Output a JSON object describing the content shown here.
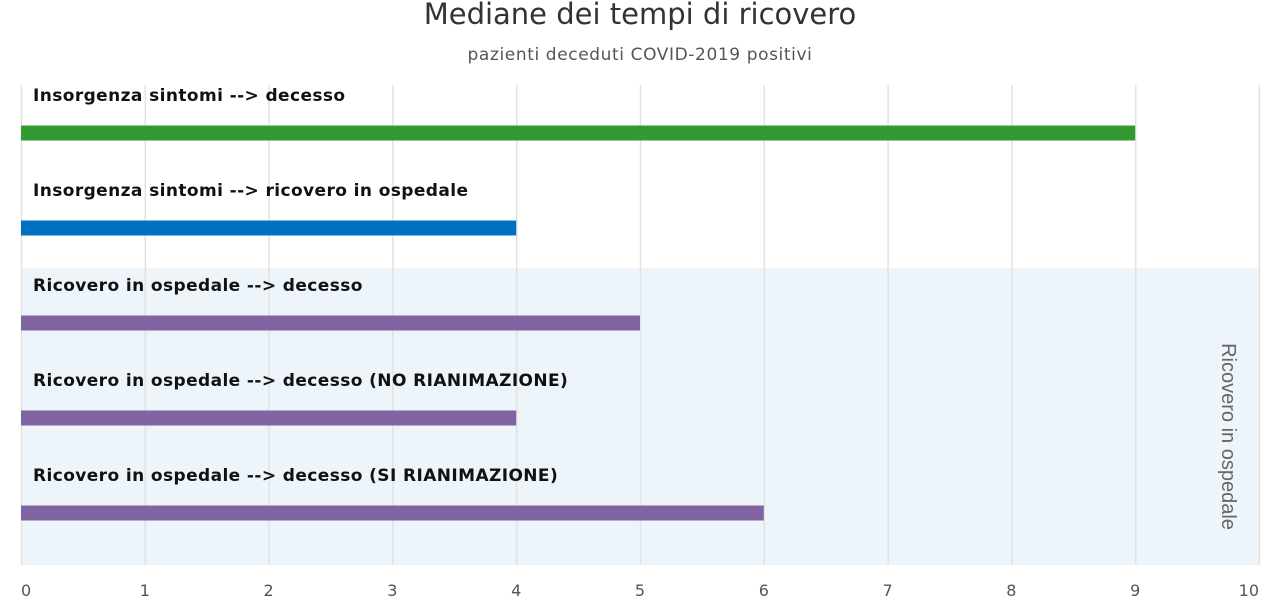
{
  "chart_data": {
    "type": "bar",
    "orientation": "horizontal",
    "title": "Mediane dei tempi di ricovero",
    "subtitle": "pazienti deceduti COVID-2019 positivi",
    "xlim": [
      0,
      10
    ],
    "x_ticks": [
      "0",
      "1",
      "2",
      "3",
      "4",
      "5",
      "6",
      "7",
      "8",
      "9",
      "10"
    ],
    "grid": true,
    "categories": [
      "Insorgenza sintomi --> decesso",
      "Insorgenza sintomi --> ricovero in ospedale",
      "Ricovero in ospedale --> decesso",
      "Ricovero in ospedale --> decesso (NO RIANIMAZIONE)",
      "Ricovero in ospedale --> decesso (SI RIANIMAZIONE)"
    ],
    "values": [
      9,
      4,
      5,
      4,
      6
    ],
    "colors": [
      "#339933",
      "#0070c0",
      "#8064a2",
      "#8064a2",
      "#8064a2"
    ],
    "band": {
      "label": "Ricovero in ospedale",
      "covers_categories": [
        2,
        3,
        4
      ],
      "color": "#edf4fa"
    }
  }
}
